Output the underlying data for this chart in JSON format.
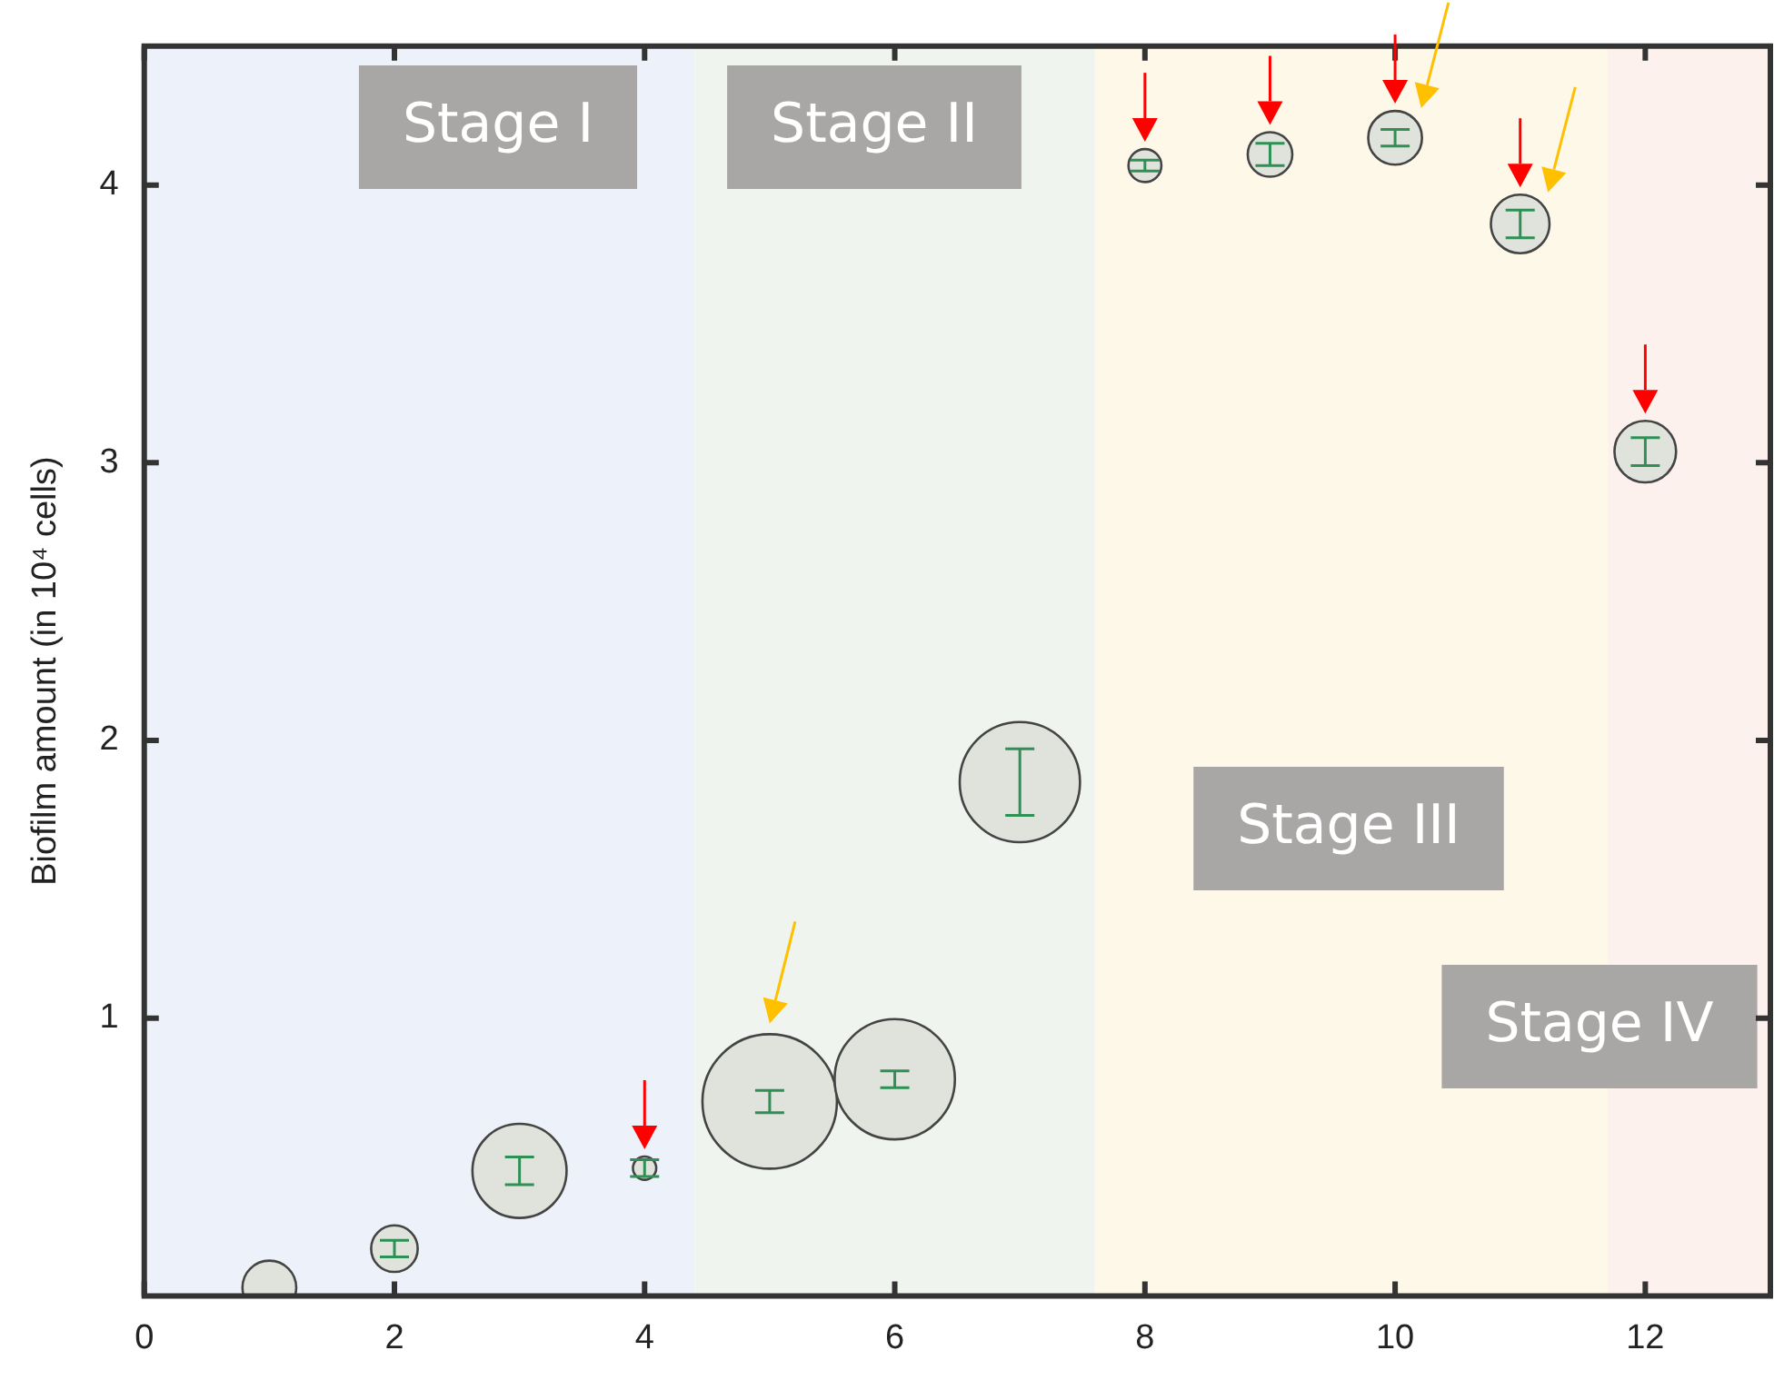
{
  "chart_data": {
    "type": "bubble",
    "ylabel": "Biofilm amount (in 10⁴ cells)",
    "x": [
      1,
      2,
      3,
      4,
      5,
      6,
      7,
      8,
      9,
      10,
      11,
      12
    ],
    "series": [
      {
        "color": "#dfe3dc",
        "values": [
          0.03,
          0.17,
          0.45,
          0.46,
          0.7,
          0.78,
          1.85,
          4.07,
          4.11,
          4.17,
          3.86,
          3.04
        ],
        "sizes": [
          0.16,
          0.12,
          0.49,
          0.03,
          1,
          0.8,
          0.8,
          0.06,
          0.11,
          0.16,
          0.19,
          0.21
        ],
        "errors": [
          null,
          0.03,
          0.05,
          0.03,
          0.04,
          0.03,
          0.12,
          0.02,
          0.04,
          0.03,
          0.05,
          0.05
        ]
      }
    ],
    "xlim": [
      0,
      13
    ],
    "xticks": [
      0,
      2,
      4,
      6,
      8,
      10,
      12
    ],
    "ylim": [
      0,
      4.5
    ],
    "yticks": [
      1,
      2,
      3,
      4
    ],
    "bands": [
      {
        "axis": "x",
        "from": 0,
        "to": 4.4,
        "label": "Stage I",
        "color": "#edf1fa"
      },
      {
        "axis": "x",
        "from": 4.4,
        "to": 7.6,
        "label": "Stage II",
        "color": "#eff5ee"
      },
      {
        "axis": "x",
        "from": 7.6,
        "to": 11.7,
        "label": "Stage III",
        "color": "#fef8e9"
      },
      {
        "axis": "x",
        "from": 11.7,
        "to": 13,
        "label": "Stage IV",
        "color": "#fcf1ed"
      }
    ],
    "grid": false,
    "legend": false
  }
}
